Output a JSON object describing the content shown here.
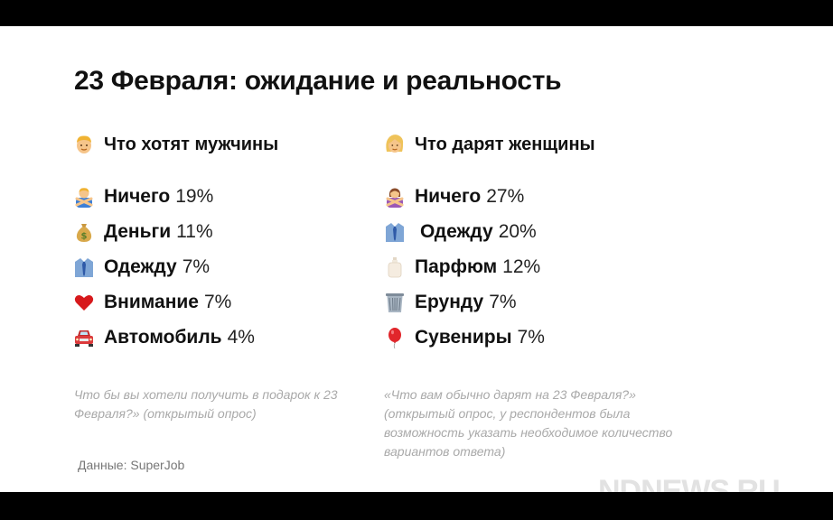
{
  "title": "23 Февраля: ожидание и реальность",
  "men": {
    "heading": "Что хотят мужчины",
    "heading_icon": "man-face-icon",
    "items": [
      {
        "label": "Ничего",
        "value": "19%",
        "icon": "person-crossed-arms-icon"
      },
      {
        "label": "Деньги",
        "value": "11%",
        "icon": "money-bag-icon"
      },
      {
        "label": "Одежду",
        "value": "7%",
        "icon": "shirt-tie-icon"
      },
      {
        "label": "Внимание",
        "value": "7%",
        "icon": "red-heart-icon"
      },
      {
        "label": "Автомобиль",
        "value": "4%",
        "icon": "car-icon"
      }
    ],
    "note": "Что бы вы хотели получить в подарок к 23 Февраля?» (открытый опрос)"
  },
  "women": {
    "heading": "Что дарят женщины",
    "heading_icon": "woman-face-icon",
    "items": [
      {
        "label": "Ничего",
        "value": "27%",
        "icon": "woman-crossed-arms-icon"
      },
      {
        "label": "Одежду",
        "value": "20%",
        "icon": "shirt-tie-icon"
      },
      {
        "label": "Парфюм",
        "value": "12%",
        "icon": "perfume-bottle-icon"
      },
      {
        "label": "Ерунду",
        "value": "7%",
        "icon": "wastebasket-icon"
      },
      {
        "label": "Сувениры",
        "value": "7%",
        "icon": "balloon-icon"
      }
    ],
    "note": "«Что вам обычно дарят на 23 Февраля?» (открытый опрос, у респондентов была возможность указать необходимое количество вариантов ответа)"
  },
  "source": "Данные: SuperJob",
  "watermark": "NDNEWS.RU"
}
